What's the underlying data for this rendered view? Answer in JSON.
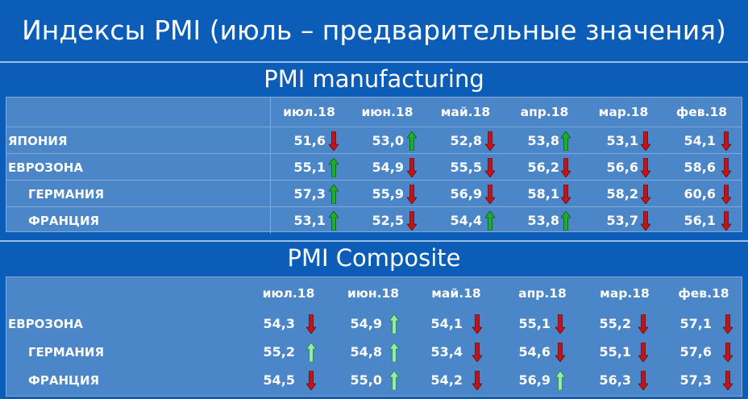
{
  "title": "Индексы PMI (июль – предварительные значения)",
  "colors": {
    "background": "#0b5db8",
    "panel": "#4a86c8",
    "up_dark": "#1fae2a",
    "up_light": "#8df0a8",
    "down": "#c0141a"
  },
  "manufacturing": {
    "heading": "PMI manufacturing",
    "months": [
      "июл.18",
      "июн.18",
      "май.18",
      "апр.18",
      "мар.18",
      "фев.18"
    ],
    "rows": [
      {
        "label": "ЯПОНИЯ",
        "indent": false,
        "values": [
          "51,6",
          "53,0",
          "52,8",
          "53,8",
          "53,1",
          "54,1"
        ],
        "arrows": [
          "down-icon",
          "up-icon",
          "down-icon",
          "up-icon",
          "down-icon",
          "down-icon"
        ]
      },
      {
        "label": "ЕВРОЗОНА",
        "indent": false,
        "values": [
          "55,1",
          "54,9",
          "55,5",
          "56,2",
          "56,6",
          "58,6"
        ],
        "arrows": [
          "up-icon",
          "down-icon",
          "down-icon",
          "down-icon",
          "down-icon",
          "down-icon"
        ]
      },
      {
        "label": "ГЕРМАНИЯ",
        "indent": true,
        "values": [
          "57,3",
          "55,9",
          "56,9",
          "58,1",
          "58,2",
          "60,6"
        ],
        "arrows": [
          "up-icon",
          "down-icon",
          "down-icon",
          "down-icon",
          "down-icon",
          "down-icon"
        ]
      },
      {
        "label": "ФРАНЦИЯ",
        "indent": true,
        "values": [
          "53,1",
          "52,5",
          "54,4",
          "53,8",
          "53,7",
          "56,1"
        ],
        "arrows": [
          "up-icon",
          "down-icon",
          "up-icon",
          "up-icon",
          "down-icon",
          "down-icon"
        ]
      }
    ]
  },
  "composite": {
    "heading": "PMI Composite",
    "months": [
      "июл.18",
      "июн.18",
      "май.18",
      "апр.18",
      "мар.18",
      "фев.18"
    ],
    "rows": [
      {
        "label": "ЕВРОЗОНА",
        "indent": false,
        "values": [
          "54,3",
          "54,9",
          "54,1",
          "55,1",
          "55,2",
          "57,1"
        ],
        "arrows": [
          "down-icon",
          "up-light-icon",
          "down-icon",
          "down-icon",
          "down-icon",
          "down-icon"
        ]
      },
      {
        "label": "ГЕРМАНИЯ",
        "indent": true,
        "values": [
          "55,2",
          "54,8",
          "53,4",
          "54,6",
          "55,1",
          "57,6"
        ],
        "arrows": [
          "up-light-icon",
          "up-light-icon",
          "down-icon",
          "down-icon",
          "down-icon",
          "down-icon"
        ]
      },
      {
        "label": "ФРАНЦИЯ",
        "indent": true,
        "values": [
          "54,5",
          "55,0",
          "54,2",
          "56,9",
          "56,3",
          "57,3"
        ],
        "arrows": [
          "down-icon",
          "up-light-icon",
          "down-icon",
          "up-light-icon",
          "down-icon",
          "down-icon"
        ]
      }
    ]
  }
}
